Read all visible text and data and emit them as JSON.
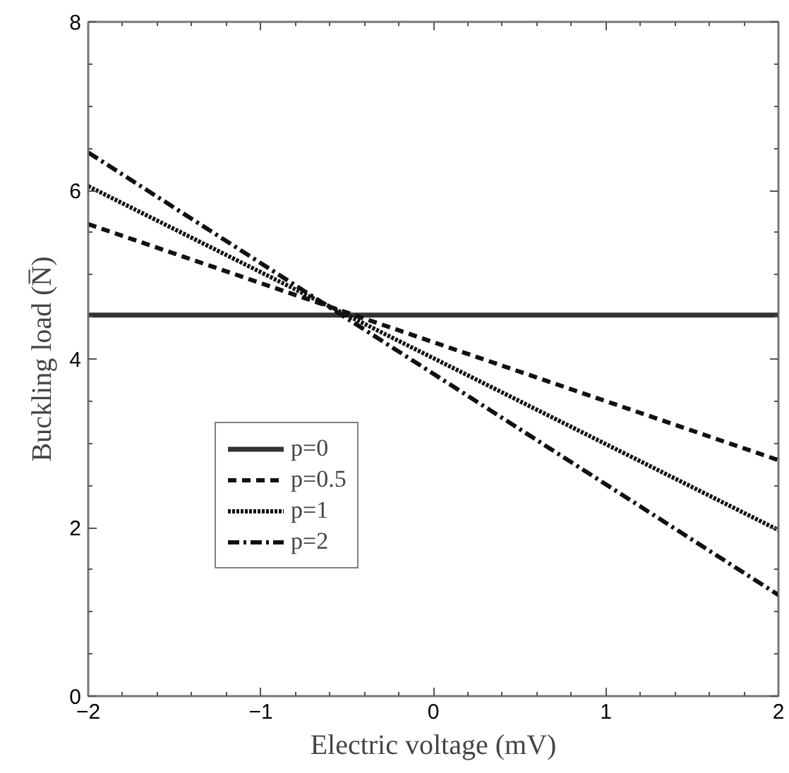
{
  "chart_data": {
    "type": "line",
    "xlabel": "Electric voltage (mV)",
    "ylabel": "Buckling load (N̅)",
    "x": [
      -2,
      2
    ],
    "xlim": [
      -2,
      2
    ],
    "xticks": [
      -2,
      -1,
      0,
      1,
      2
    ],
    "ylim": [
      0,
      8
    ],
    "yticks": [
      0,
      2,
      4,
      6,
      8
    ],
    "grid": false,
    "legend": "bottom left",
    "tick_labels": "xy",
    "series": [
      {
        "name": "p=0",
        "color": "#333333",
        "values": [
          4.52,
          4.52
        ],
        "line_style": "solid"
      },
      {
        "name": "p=0.5",
        "color": "#111111",
        "values": [
          5.6,
          2.8
        ],
        "line_style": "dashed"
      },
      {
        "name": "p=1",
        "color": "#111111",
        "values": [
          6.05,
          1.97
        ],
        "line_style": "dotted"
      },
      {
        "name": "p=2",
        "color": "#111111",
        "values": [
          6.45,
          1.2
        ],
        "line_style": "dashdot"
      }
    ]
  }
}
